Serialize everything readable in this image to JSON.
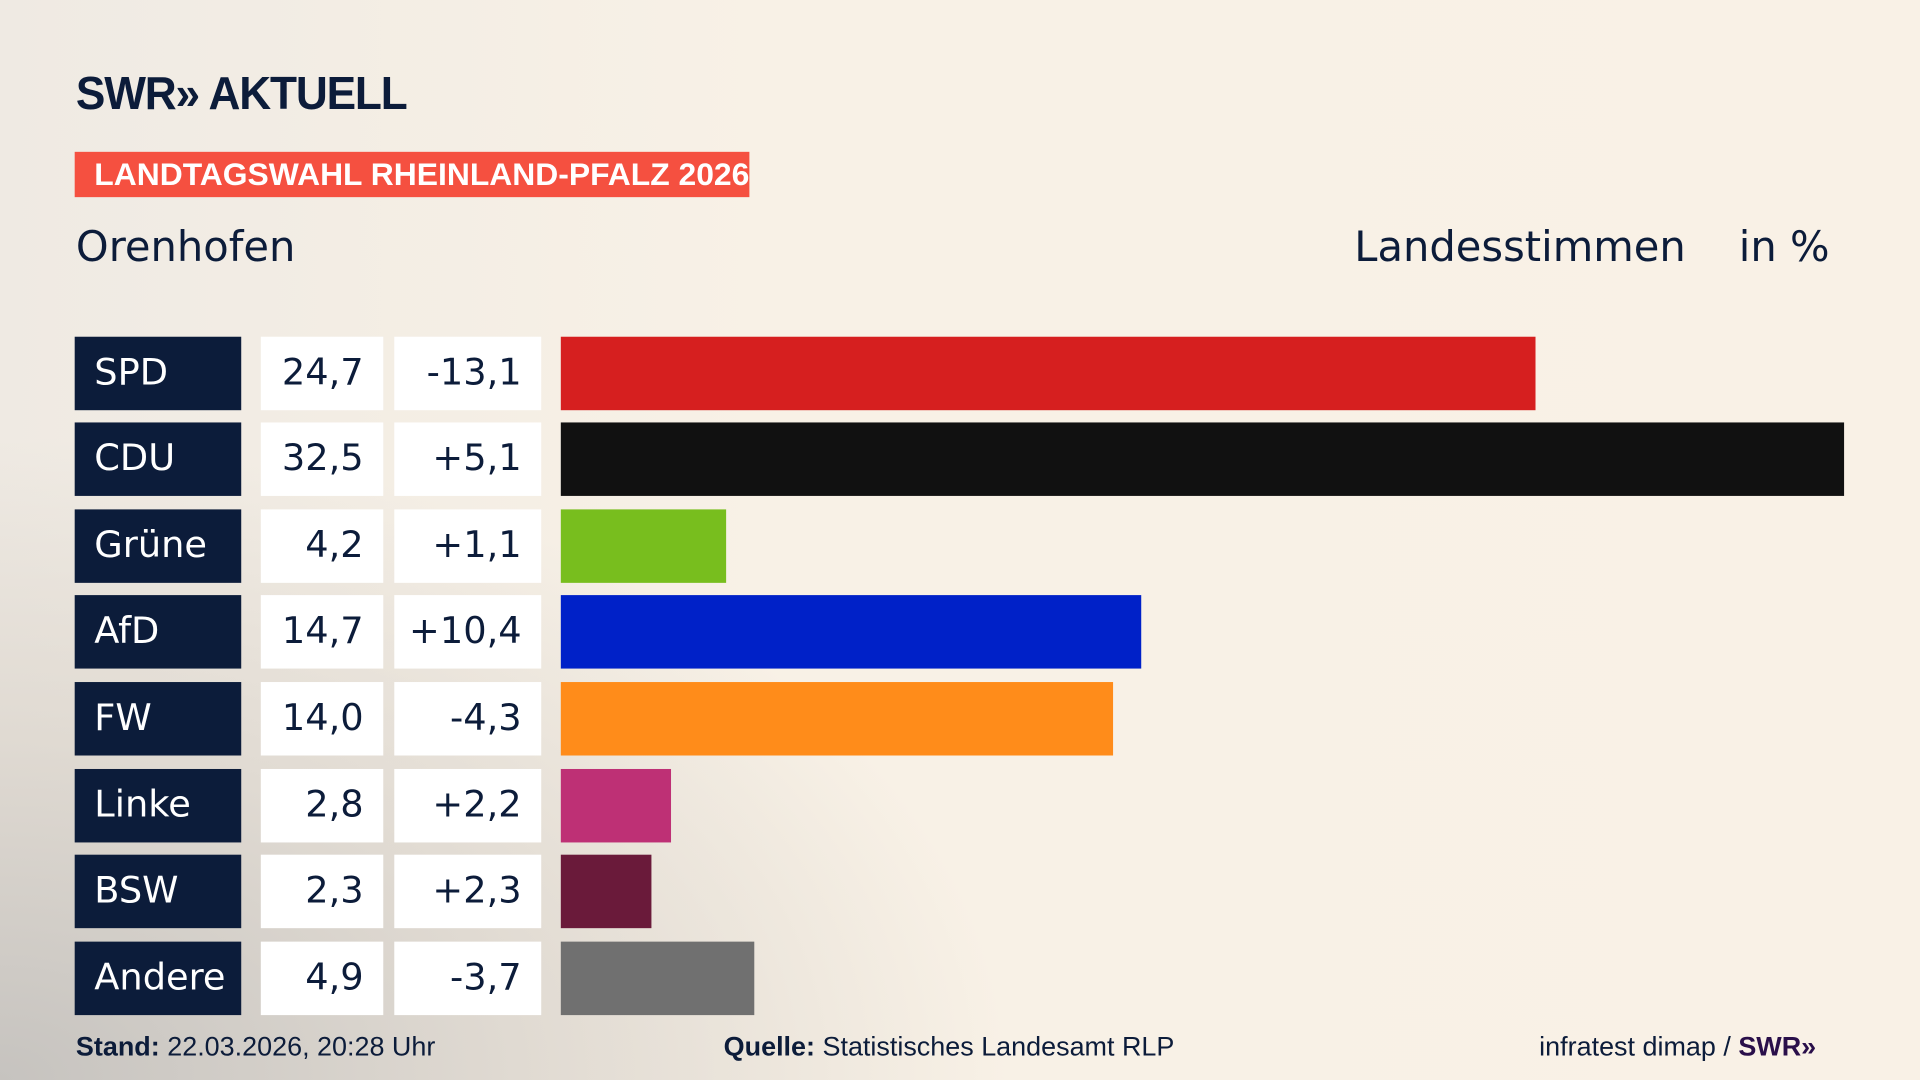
{
  "header": {
    "logo": "SWR» AKTUELL",
    "banner": "LANDTAGSWAHL RHEINLAND-PFALZ 2026",
    "place": "Orenhofen",
    "metric": "Landesstimmen",
    "unit": "in %"
  },
  "chart_data": {
    "type": "bar",
    "orientation": "horizontal",
    "xlim": [
      0,
      32.5
    ],
    "grid": false,
    "categories": [
      "SPD",
      "CDU",
      "Grüne",
      "AfD",
      "FW",
      "Linke",
      "BSW",
      "Andere"
    ],
    "values": [
      24.7,
      32.5,
      4.2,
      14.7,
      14.0,
      2.8,
      2.3,
      4.9
    ],
    "value_labels": [
      "24,7",
      "32,5",
      "4,2",
      "14,7",
      "14,0",
      "2,8",
      "2,3",
      "4,9"
    ],
    "diff_labels": [
      "-13,1",
      "+5,1",
      "+1,1",
      "+10,4",
      "-4,3",
      "+2,2",
      "+2,3",
      "-3,7"
    ],
    "colors": [
      "#d61f1f",
      "#111111",
      "#78be1e",
      "#0021c8",
      "#ff8c1a",
      "#be3075",
      "#6a1a3a",
      "#707070"
    ]
  },
  "footer": {
    "stand_label": "Stand:",
    "stand_value": "22.03.2026, 20:28 Uhr",
    "quelle_label": "Quelle:",
    "quelle_value": "Statistisches Landesamt RLP",
    "credit": "infratest dimap /",
    "credit_logo": "SWR»"
  }
}
